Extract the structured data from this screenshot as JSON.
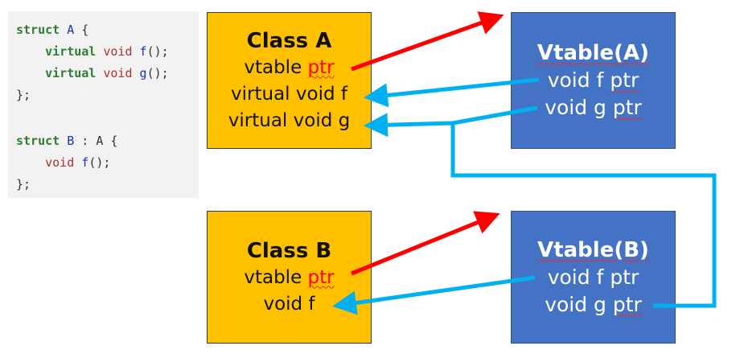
{
  "code": {
    "lines": [
      [
        {
          "t": "struct ",
          "c": "kw"
        },
        {
          "t": "A",
          "c": "nm"
        },
        {
          "t": " {",
          "c": ""
        }
      ],
      [
        {
          "t": "    virtual ",
          "c": "kw"
        },
        {
          "t": "void ",
          "c": "ty"
        },
        {
          "t": "f",
          "c": "nm"
        },
        {
          "t": "();",
          "c": ""
        }
      ],
      [
        {
          "t": "    virtual ",
          "c": "kw"
        },
        {
          "t": "void ",
          "c": "ty"
        },
        {
          "t": "g",
          "c": "nm"
        },
        {
          "t": "();",
          "c": ""
        }
      ],
      [
        {
          "t": "};",
          "c": ""
        }
      ],
      null,
      [
        {
          "t": "struct ",
          "c": "kw"
        },
        {
          "t": "B",
          "c": "nm"
        },
        {
          "t": " : A {",
          "c": ""
        }
      ],
      [
        {
          "t": "    void ",
          "c": "ty"
        },
        {
          "t": "f",
          "c": "nm"
        },
        {
          "t": "();",
          "c": ""
        }
      ],
      [
        {
          "t": "};",
          "c": ""
        }
      ]
    ]
  },
  "class_a": {
    "title": "Class A",
    "vtable_prefix": "vtable ",
    "vtable_ptr": "ptr",
    "row_f": "virtual void f",
    "row_g": "virtual void g"
  },
  "class_b": {
    "title": "Class B",
    "vtable_prefix": "vtable ",
    "vtable_ptr": "ptr",
    "row_f": "void f"
  },
  "vtable_a": {
    "title": "Vtable(A)",
    "f_text": "void f ",
    "f_ptr": "ptr",
    "g_text": "void g ",
    "g_ptr": "ptr"
  },
  "vtable_b": {
    "title": "Vtable(B)",
    "f_text": "void f ptr",
    "g_text": "void g ",
    "g_ptr": "ptr"
  },
  "colors": {
    "class_box": "#ffc000",
    "vtable_box": "#4472c4",
    "vtable_pointer_arrow": "#ff0000",
    "function_pointer_arrow": "#00b0f0"
  }
}
